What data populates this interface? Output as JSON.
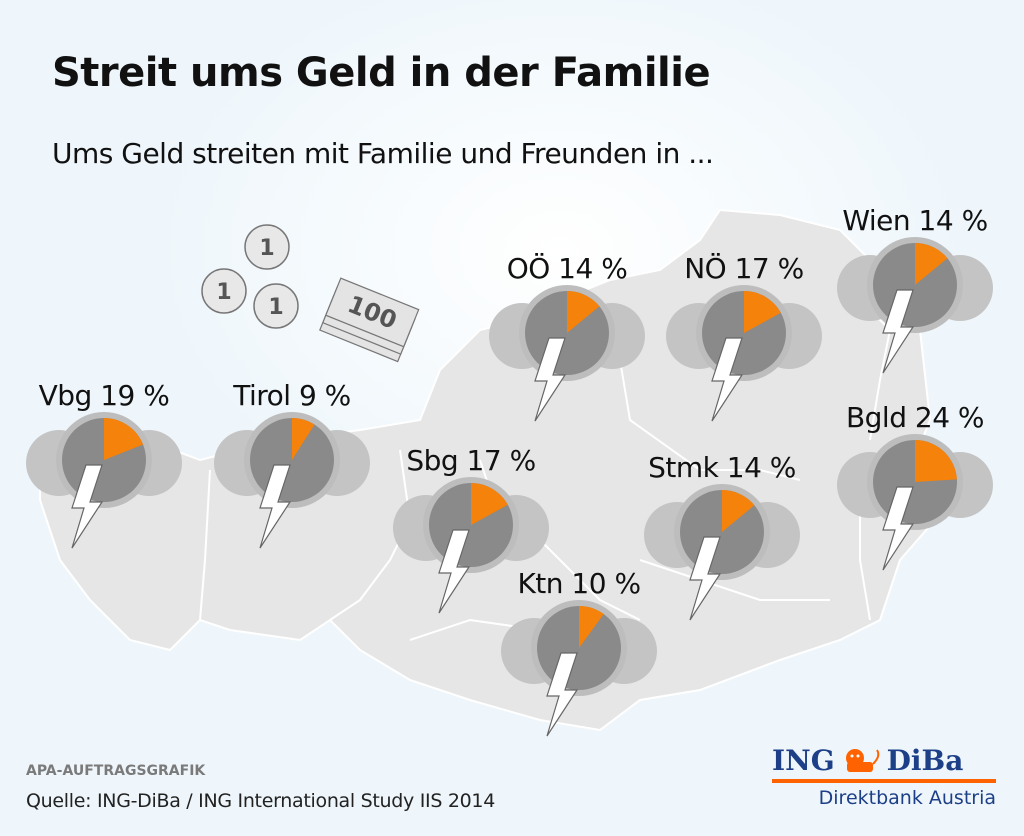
{
  "header": {
    "title": "Streit ums Geld in der Familie",
    "subtitle": "Ums Geld streiten mit Familie und Freunden in ..."
  },
  "decorations": {
    "coins": [
      "1",
      "1",
      "1"
    ],
    "banknote": "100",
    "icons": [
      "coin-icon",
      "banknote-icon",
      "storm-cloud-icon",
      "lightning-icon",
      "lion-icon"
    ]
  },
  "colors": {
    "highlight": "#f5820a",
    "pie_rest": "#8a8a8a",
    "cloud": "#c4c4c4",
    "map": "#e6e6e6",
    "brand_blue": "#1d3f87",
    "brand_orange": "#ff6200"
  },
  "chart_data": {
    "type": "pie",
    "title": "Streit ums Geld in der Familie",
    "subtitle": "Ums Geld streiten mit Familie und Freunden in ...",
    "unit": "%",
    "categories": [
      "Vbg",
      "Tirol",
      "Sbg",
      "OÖ",
      "NÖ",
      "Wien",
      "Stmk",
      "Ktn",
      "Bgld"
    ],
    "values": [
      19,
      9,
      17,
      14,
      17,
      14,
      14,
      10,
      24
    ],
    "labels": [
      "Vbg 19 %",
      "Tirol 9 %",
      "Sbg 17 %",
      "OÖ 14 %",
      "NÖ 17 %",
      "Wien 14 %",
      "Stmk 14 %",
      "Ktn 10 %",
      "Bgld 24 %"
    ]
  },
  "footer": {
    "credit": "APA-AUFTRAGSGRAFIK",
    "source": "Quelle: ING-DiBa / ING International Study IIS 2014",
    "logo_left": "ING",
    "logo_right": "DiBa",
    "logo_sub": "Direktbank Austria"
  }
}
